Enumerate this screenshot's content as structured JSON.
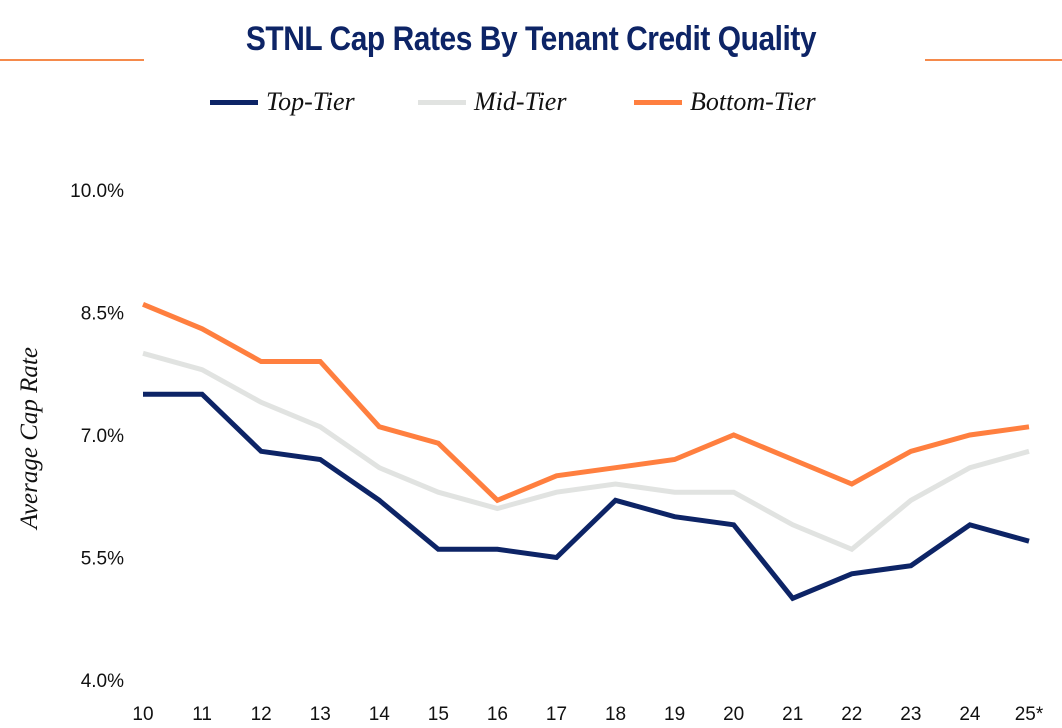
{
  "colors": {
    "title": "#0d2466",
    "rule": "#f58a4b",
    "top_tier": "#0d2466",
    "mid_tier": "#e1e3e1",
    "bottom_tier": "#ff7f3f"
  },
  "chart_data": {
    "type": "line",
    "title": "STNL Cap Rates By Tenant Credit Quality",
    "xlabel": "",
    "ylabel": "Average Cap Rate",
    "x": [
      "10",
      "11",
      "12",
      "13",
      "14",
      "15",
      "16",
      "17",
      "18",
      "19",
      "20",
      "21",
      "22",
      "23",
      "24",
      "25*"
    ],
    "ylim": [
      4.0,
      10.0
    ],
    "yticks": [
      4.0,
      5.5,
      7.0,
      8.5,
      10.0
    ],
    "ytick_labels": [
      "4.0%",
      "5.5%",
      "7.0%",
      "8.5%",
      "10.0%"
    ],
    "grid": false,
    "legend_position": "top-center",
    "series": [
      {
        "name": "Top-Tier",
        "color": "#0d2466",
        "values": [
          7.5,
          7.5,
          6.8,
          6.7,
          6.2,
          5.6,
          5.6,
          5.5,
          6.2,
          6.0,
          5.9,
          5.0,
          5.3,
          5.4,
          5.9,
          5.7
        ]
      },
      {
        "name": "Mid-Tier",
        "color": "#e1e3e1",
        "values": [
          8.0,
          7.8,
          7.4,
          7.1,
          6.6,
          6.3,
          6.1,
          6.3,
          6.4,
          6.3,
          6.3,
          5.9,
          5.6,
          6.2,
          6.6,
          6.8
        ]
      },
      {
        "name": "Bottom-Tier",
        "color": "#ff7f3f",
        "values": [
          8.6,
          8.3,
          7.9,
          7.9,
          7.1,
          6.9,
          6.2,
          6.5,
          6.6,
          6.7,
          7.0,
          6.7,
          6.4,
          6.8,
          7.0,
          7.1
        ]
      }
    ]
  }
}
